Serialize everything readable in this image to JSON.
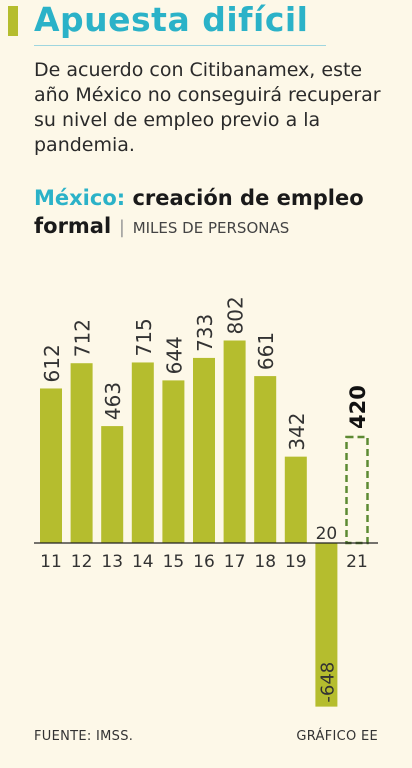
{
  "header": {
    "title": "Apuesta difícil",
    "subtitle": "De acuerdo con Citibanamex, este año México no conseguirá recuperar su nivel de empleo previo a la pandemia."
  },
  "chart_heading": {
    "country": "México:",
    "title_rest": "creación de empleo formal",
    "units": "MILES DE PERSONAS"
  },
  "colors": {
    "bar": "#b5bd2e",
    "projection": "#5d8a33",
    "accent": "#2bb2c8"
  },
  "chart_data": {
    "type": "bar",
    "categories": [
      "11",
      "12",
      "13",
      "14",
      "15",
      "16",
      "17",
      "18",
      "19",
      "20",
      "21"
    ],
    "values": [
      612,
      712,
      463,
      715,
      644,
      733,
      802,
      661,
      342,
      -648,
      420
    ],
    "value_labels": [
      "612",
      "712",
      "463",
      "715",
      "644",
      "733",
      "802",
      "661",
      "342",
      "-648",
      "420"
    ],
    "projected": [
      false,
      false,
      false,
      false,
      false,
      false,
      false,
      false,
      false,
      false,
      true
    ],
    "axis_label_20": "20",
    "title": "México: creación de empleo formal",
    "ylabel": "MILES DE PERSONAS",
    "ylim": [
      -648,
      802
    ]
  },
  "footer": {
    "source": "FUENTE: IMSS.",
    "credit": "GRÁFICO EE"
  }
}
